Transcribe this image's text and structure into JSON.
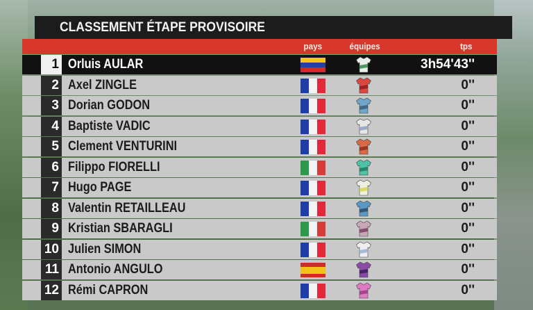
{
  "title": "CLASSEMENT ÉTAPE PROVISOIRE",
  "headers": {
    "pays": "pays",
    "equipes": "équipes",
    "tps": "tps"
  },
  "riders": [
    {
      "rank": "1",
      "name": "Orluis AULAR",
      "country": "VEN",
      "time": "3h54'43''",
      "jersey": "#e8eee8",
      "jersey2": "#2f8a4a"
    },
    {
      "rank": "2",
      "name": "Axel ZINGLE",
      "country": "FRA",
      "time": "0''",
      "jersey": "#d9473e",
      "jersey2": "#8c1e1e"
    },
    {
      "rank": "3",
      "name": "Dorian GODON",
      "country": "FRA",
      "time": "0''",
      "jersey": "#6fa6c9",
      "jersey2": "#3b5e7a"
    },
    {
      "rank": "4",
      "name": "Baptiste VADIC",
      "country": "FRA",
      "time": "0''",
      "jersey": "#e6e6e6",
      "jersey2": "#8aa0c8"
    },
    {
      "rank": "5",
      "name": "Clement VENTURINI",
      "country": "FRA",
      "time": "0''",
      "jersey": "#d96a46",
      "jersey2": "#8c2e1e"
    },
    {
      "rank": "6",
      "name": "Filippo FIORELLI",
      "country": "ITA",
      "time": "0''",
      "jersey": "#4fc2a6",
      "jersey2": "#1f7a62"
    },
    {
      "rank": "7",
      "name": "Hugo PAGE",
      "country": "FRA",
      "time": "0''",
      "jersey": "#eef0e0",
      "jersey2": "#d8d24a"
    },
    {
      "rank": "8",
      "name": "Valentin RETAILLEAU",
      "country": "FRA",
      "time": "0''",
      "jersey": "#5a9ac2",
      "jersey2": "#2c4e6a"
    },
    {
      "rank": "9",
      "name": "Kristian SBARAGLI",
      "country": "ITA",
      "time": "0''",
      "jersey": "#c7a6b8",
      "jersey2": "#7a3e62"
    },
    {
      "rank": "10",
      "name": "Julien SIMON",
      "country": "FRA",
      "time": "0''",
      "jersey": "#eeeeee",
      "jersey2": "#9ab0d0"
    },
    {
      "rank": "11",
      "name": "Antonio ANGULO",
      "country": "ESP",
      "time": "0''",
      "jersey": "#8a4aa6",
      "jersey2": "#3c1e5a"
    },
    {
      "rank": "12",
      "name": "Rémi CAPRON",
      "country": "FRA",
      "time": "0''",
      "jersey": "#e07ac2",
      "jersey2": "#9a3a86"
    }
  ],
  "colors": {
    "title_bg": "#1c1c1c",
    "header_bg": "#d8382b",
    "row_bg": "#c9c9c9",
    "rank_bg": "#2a2a2a",
    "leader_bg": "#111111"
  }
}
